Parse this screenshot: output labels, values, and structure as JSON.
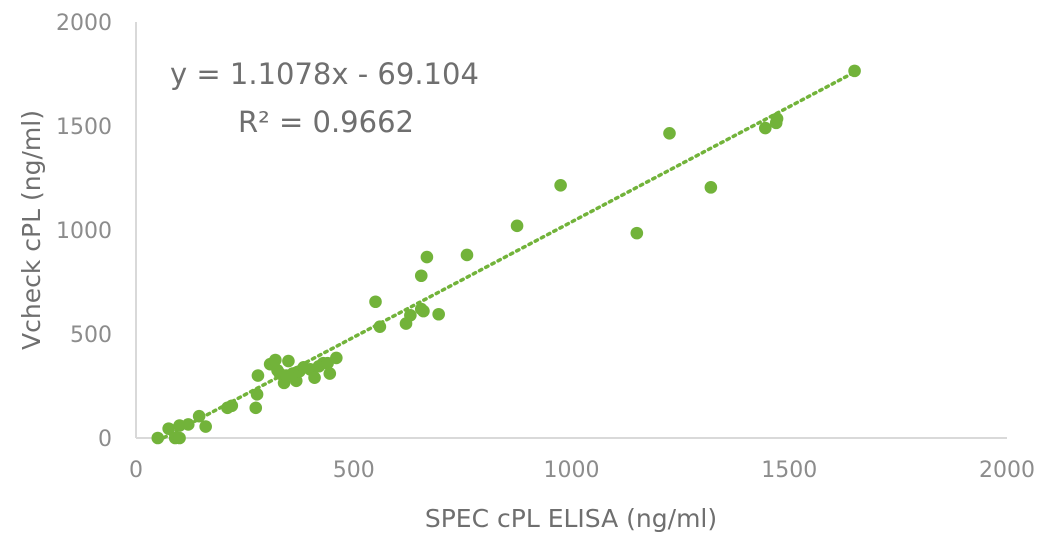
{
  "chart_data": {
    "type": "scatter",
    "title": "",
    "xlabel": "SPEC cPL ELISA (ng/ml)",
    "ylabel": "Vcheck cPL (ng/ml)",
    "xlim": [
      0,
      2000
    ],
    "ylim": [
      0,
      2000
    ],
    "x_ticks": [
      "0",
      "500",
      "1000",
      "1500",
      "2000"
    ],
    "y_ticks": [
      "0",
      "500",
      "1000",
      "1500",
      "2000"
    ],
    "grid": false,
    "legend": "none",
    "colors": {
      "points": "#72b33a",
      "trendline": "#72b33a",
      "axis": "#d9d9d9",
      "text": "#7f7f7f"
    },
    "trendline": {
      "type": "linear",
      "style": "dotted",
      "slope": 1.1078,
      "intercept": -69.104,
      "x_range": [
        50,
        1650
      ],
      "equation": "y = 1.1078x - 69.104",
      "r_squared_label": "R² = 0.9662"
    },
    "series": [
      {
        "points": [
          [
            50,
            0
          ],
          [
            75,
            45
          ],
          [
            90,
            0
          ],
          [
            100,
            0
          ],
          [
            100,
            60
          ],
          [
            120,
            65
          ],
          [
            145,
            105
          ],
          [
            160,
            55
          ],
          [
            210,
            145
          ],
          [
            220,
            155
          ],
          [
            275,
            145
          ],
          [
            278,
            210
          ],
          [
            280,
            300
          ],
          [
            308,
            355
          ],
          [
            320,
            375
          ],
          [
            325,
            325
          ],
          [
            330,
            310
          ],
          [
            340,
            265
          ],
          [
            345,
            300
          ],
          [
            350,
            370
          ],
          [
            360,
            310
          ],
          [
            368,
            275
          ],
          [
            375,
            320
          ],
          [
            385,
            340
          ],
          [
            400,
            330
          ],
          [
            410,
            290
          ],
          [
            420,
            345
          ],
          [
            430,
            360
          ],
          [
            440,
            360
          ],
          [
            445,
            310
          ],
          [
            460,
            385
          ],
          [
            550,
            655
          ],
          [
            560,
            535
          ],
          [
            620,
            550
          ],
          [
            630,
            590
          ],
          [
            655,
            620
          ],
          [
            655,
            780
          ],
          [
            660,
            610
          ],
          [
            668,
            870
          ],
          [
            695,
            595
          ],
          [
            760,
            880
          ],
          [
            875,
            1020
          ],
          [
            975,
            1215
          ],
          [
            1150,
            985
          ],
          [
            1225,
            1465
          ],
          [
            1320,
            1205
          ],
          [
            1445,
            1490
          ],
          [
            1470,
            1515
          ],
          [
            1472,
            1535
          ],
          [
            1650,
            1765
          ]
        ]
      }
    ]
  }
}
